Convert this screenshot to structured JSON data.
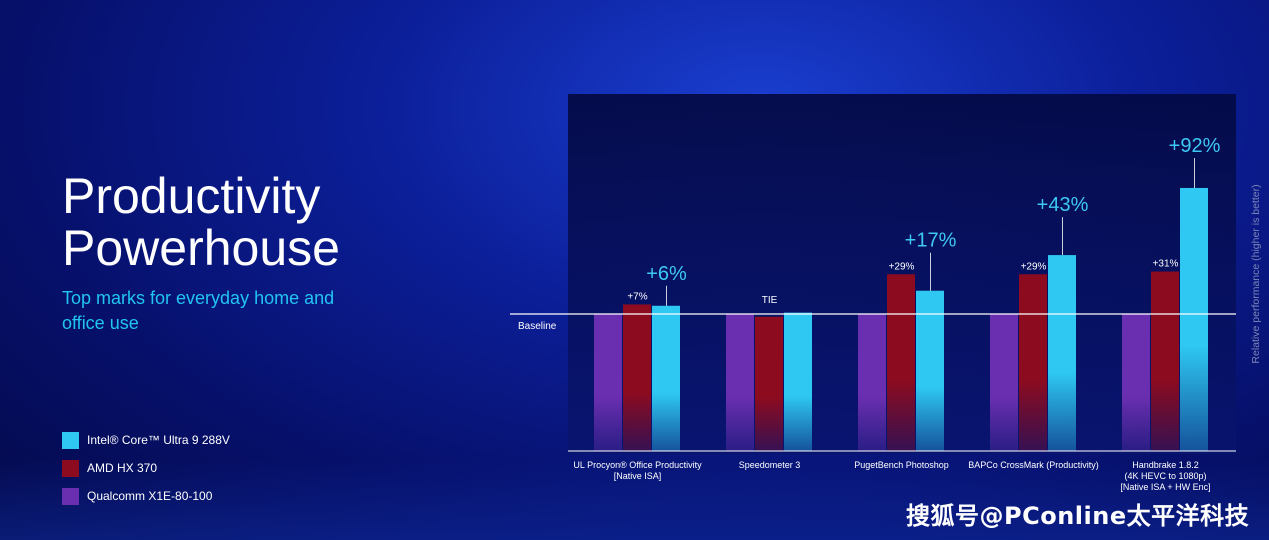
{
  "title_line1": "Productivity",
  "title_line2": "Powerhouse",
  "subtitle": "Top marks for everyday home and office use",
  "watermark": "搜狐号@PConline太平洋科技",
  "legend": [
    {
      "label": "Intel® Core™ Ultra 9 288V",
      "color": "#2ec8f2"
    },
    {
      "label": "AMD HX 370",
      "color": "#8c0b1f"
    },
    {
      "label": "Qualcomm X1E-80-100",
      "color": "#6a2fb0"
    }
  ],
  "chart_data": {
    "type": "bar",
    "ylabel": "Relative performance (higher is better)",
    "baseline_label": "Baseline",
    "baseline_value": 1.0,
    "ylim": [
      0.0,
      2.05
    ],
    "grid": false,
    "legend_position": "bottom-left",
    "categories": [
      "UL Procyon® Office Productivity\n[Native ISA]",
      "Speedometer 3",
      "PugetBench Photoshop",
      "BAPCo CrossMark (Productivity)",
      "Handbrake 1.8.2\n(4K HEVC to 1080p)\n[Native ISA + HW Enc]"
    ],
    "series": [
      {
        "name": "Qualcomm X1E-80-100",
        "color": "#6a2fb0",
        "values": [
          1.0,
          1.0,
          1.0,
          1.0,
          1.0
        ]
      },
      {
        "name": "AMD HX 370",
        "color": "#8c0b1f",
        "values": [
          1.07,
          0.98,
          1.29,
          1.29,
          1.31
        ]
      },
      {
        "name": "Intel® Core™ Ultra 9 288V",
        "color": "#2ec8f2",
        "values": [
          1.06,
          1.01,
          1.17,
          1.43,
          1.92
        ]
      }
    ],
    "annotations": {
      "amd": [
        "+7%",
        "",
        "+29%",
        "+29%",
        "+31%"
      ],
      "intel": [
        "+6%",
        "",
        "+17%",
        "+43%",
        "+92%"
      ],
      "group": [
        "",
        "TIE",
        "",
        "",
        ""
      ]
    }
  }
}
